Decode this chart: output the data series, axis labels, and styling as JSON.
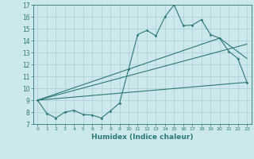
{
  "title": "",
  "xlabel": "Humidex (Indice chaleur)",
  "bg_color": "#cce8ec",
  "grid_color": "#aacdd4",
  "line_color": "#2a7a72",
  "xlim": [
    -0.5,
    23.5
  ],
  "ylim": [
    7,
    17
  ],
  "xticks": [
    0,
    1,
    2,
    3,
    4,
    5,
    6,
    7,
    8,
    9,
    10,
    11,
    12,
    13,
    14,
    15,
    16,
    17,
    18,
    19,
    20,
    21,
    22,
    23
  ],
  "yticks": [
    7,
    8,
    9,
    10,
    11,
    12,
    13,
    14,
    15,
    16,
    17
  ],
  "line1_x": [
    0,
    1,
    2,
    3,
    4,
    5,
    6,
    7,
    8,
    9,
    10,
    11,
    12,
    13,
    14,
    15,
    16,
    17,
    18,
    19,
    20,
    21,
    22,
    23
  ],
  "line1_y": [
    9.0,
    7.9,
    7.5,
    8.0,
    8.15,
    7.8,
    7.75,
    7.5,
    8.1,
    8.75,
    11.6,
    14.5,
    14.85,
    14.4,
    16.0,
    17.0,
    15.25,
    15.3,
    15.75,
    14.5,
    14.2,
    13.1,
    12.5,
    10.5
  ],
  "line2_x": [
    0,
    23
  ],
  "line2_y": [
    9.0,
    13.7
  ],
  "line3_x": [
    0,
    20,
    23
  ],
  "line3_y": [
    9.0,
    14.2,
    12.5
  ],
  "line4_x": [
    0,
    23
  ],
  "line4_y": [
    9.0,
    10.5
  ]
}
